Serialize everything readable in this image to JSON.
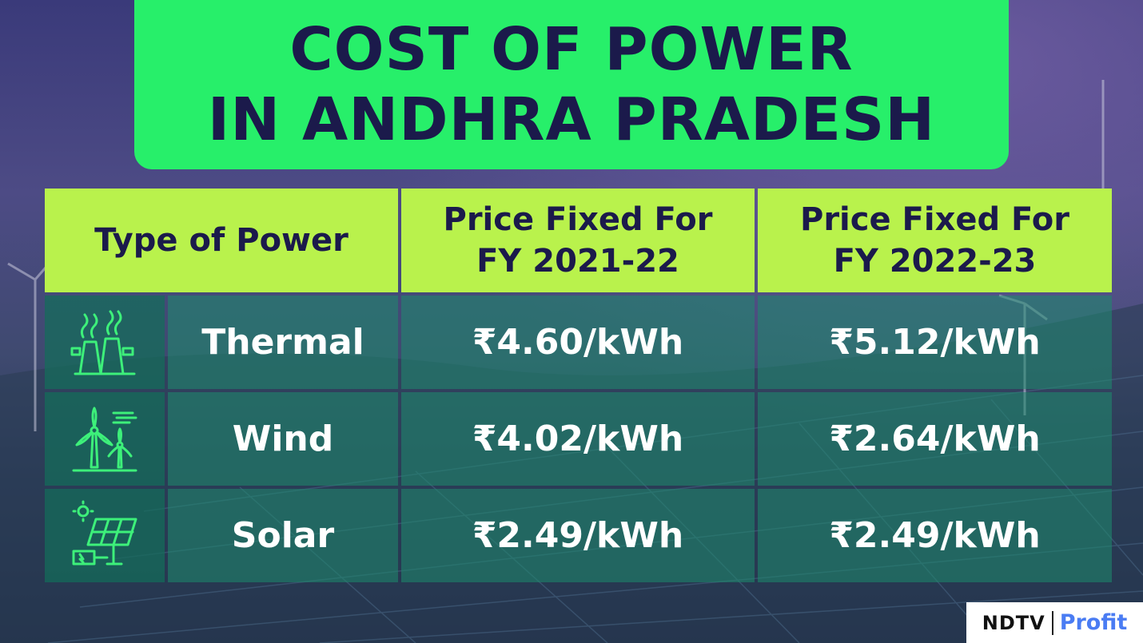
{
  "title": {
    "line1": "COST OF POWER",
    "line2": "IN ANDHRA PRADESH"
  },
  "table": {
    "headers": [
      {
        "lines": [
          "Type of Power"
        ]
      },
      {
        "lines": [
          "Price Fixed For",
          "FY 2021-22"
        ]
      },
      {
        "lines": [
          "Price Fixed For",
          "FY 2022-23"
        ]
      }
    ],
    "rows": [
      {
        "icon": "thermal-plant-icon",
        "type": "Thermal",
        "fy2122": "₹4.60/kWh",
        "fy2223": "₹5.12/kWh"
      },
      {
        "icon": "wind-turbine-icon",
        "type": "Wind",
        "fy2122": "₹4.02/kWh",
        "fy2223": "₹2.64/kWh"
      },
      {
        "icon": "solar-panel-icon",
        "type": "Solar",
        "fy2122": "₹2.49/kWh",
        "fy2223": "₹2.49/kWh"
      }
    ]
  },
  "logo": {
    "brand": "NDTV",
    "product": "Profit"
  },
  "colors": {
    "title_bg": "#27ef6a",
    "header_bg": "#b9f24c",
    "dark_text": "#1b1a4b",
    "icon_color": "#3df07a"
  }
}
